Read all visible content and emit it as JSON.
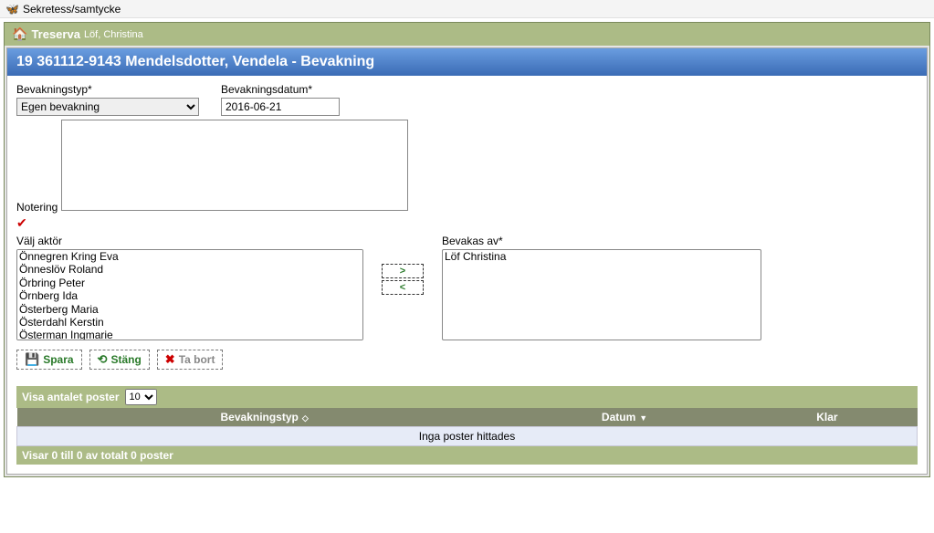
{
  "window": {
    "title": "Sekretess/samtycke"
  },
  "appbar": {
    "name": "Treserva",
    "user": "Löf, Christina"
  },
  "header": {
    "title": "19 361112-9143 Mendelsdotter, Vendela - Bevakning"
  },
  "form": {
    "bevakningstyp_label": "Bevakningstyp*",
    "bevakningstyp_value": "Egen bevakning",
    "bevakningsdatum_label": "Bevakningsdatum*",
    "bevakningsdatum_value": "2016-06-21",
    "notering_label": "Notering",
    "notering_value": ""
  },
  "aktor": {
    "valj_label": "Välj aktör",
    "bevakas_label": "Bevakas av*",
    "options": [
      "Önnegren Kring Eva",
      "Önneslöv Roland",
      "Örbring Peter",
      "Örnberg Ida",
      "Österberg Maria",
      "Österdahl Kerstin",
      "Österman Ingmarie"
    ],
    "bevakas_options": [
      "Löf Christina"
    ]
  },
  "transfer": {
    "add": ">",
    "remove": "<"
  },
  "buttons": {
    "spara": "Spara",
    "stang": "Stäng",
    "tabort": "Ta bort"
  },
  "table": {
    "visa_label": "Visa antalet poster",
    "visa_value": "10",
    "col_bevakningstyp": "Bevakningstyp",
    "col_datum": "Datum",
    "col_klar": "Klar",
    "empty": "Inga poster hittades",
    "footer": "Visar 0 till 0 av totalt 0 poster"
  }
}
